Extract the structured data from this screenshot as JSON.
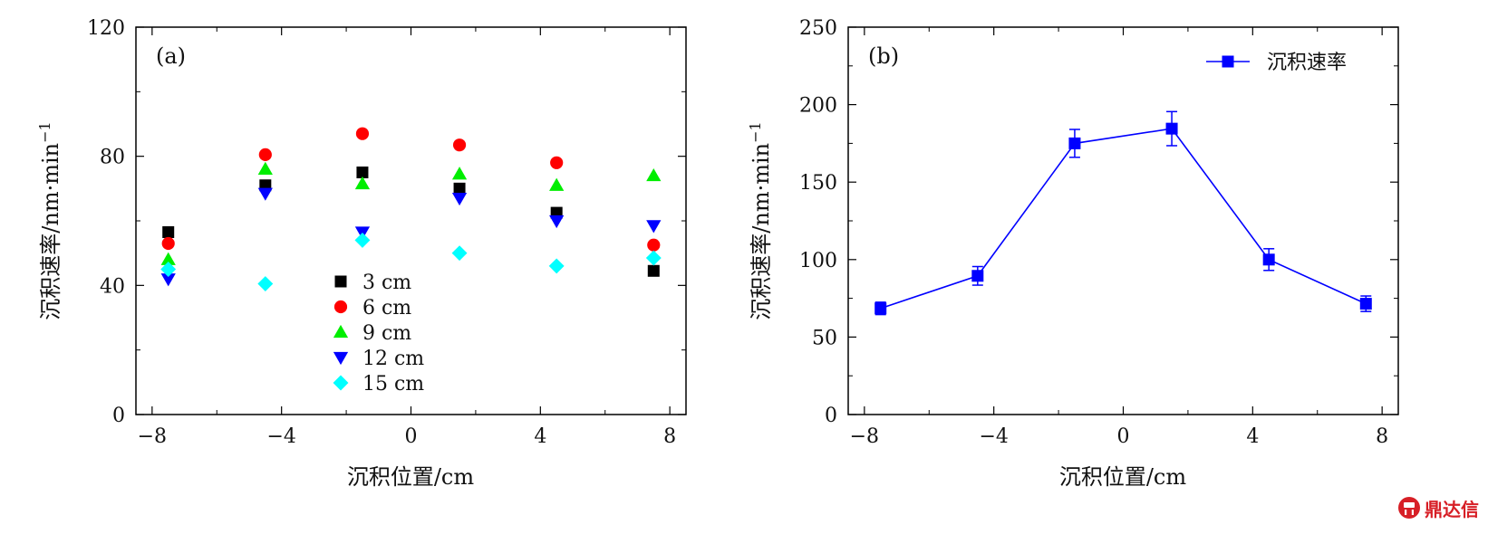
{
  "chart_data": [
    {
      "type": "scatter",
      "panel_label": "(a)",
      "xlabel": "沉积位置/cm",
      "ylabel": "沉积速率/nm·min",
      "ylabel_superscript": "−1",
      "xlim": [
        -8.5,
        8.5
      ],
      "ylim": [
        0,
        120
      ],
      "xticks": [
        -8,
        -4,
        0,
        4,
        8
      ],
      "xtick_labels": [
        "−8",
        "−4",
        "0",
        "4",
        "8"
      ],
      "yticks": [
        0,
        40,
        80,
        120
      ],
      "ytick_labels": [
        "0",
        "40",
        "80",
        "120"
      ],
      "legend_position": "center-bottom",
      "x": [
        -7.5,
        -4.5,
        -1.5,
        1.5,
        4.5,
        7.5
      ],
      "series": [
        {
          "name": "3 cm",
          "marker": "square",
          "color": "#000000",
          "values": [
            56.5,
            71,
            75,
            70,
            62.5,
            44.5
          ]
        },
        {
          "name": "6 cm",
          "marker": "circle",
          "color": "#ff0000",
          "values": [
            53,
            80.5,
            87,
            83.5,
            78,
            52.5
          ]
        },
        {
          "name": "9 cm",
          "marker": "triangle-up",
          "color": "#00ee00",
          "values": [
            48,
            76,
            71.5,
            74.5,
            71,
            74
          ]
        },
        {
          "name": "12 cm",
          "marker": "triangle-down",
          "color": "#0000ff",
          "values": [
            42,
            68.5,
            56.5,
            67,
            60,
            58.5
          ]
        },
        {
          "name": "15 cm",
          "marker": "diamond",
          "color": "#00ffff",
          "values": [
            45,
            40.5,
            54,
            50,
            46,
            48.5
          ]
        }
      ]
    },
    {
      "type": "line",
      "panel_label": "(b)",
      "xlabel": "沉积位置/cm",
      "ylabel": "沉积速率/nm·min",
      "ylabel_superscript": "−1",
      "xlim": [
        -8.5,
        8.5
      ],
      "ylim": [
        0,
        250
      ],
      "xticks": [
        -8,
        -4,
        0,
        4,
        8
      ],
      "xtick_labels": [
        "−8",
        "−4",
        "0",
        "4",
        "8"
      ],
      "yticks": [
        0,
        50,
        100,
        150,
        200,
        250
      ],
      "ytick_labels": [
        "0",
        "50",
        "100",
        "150",
        "200",
        "250"
      ],
      "legend_position": "top-right",
      "x": [
        -7.5,
        -4.5,
        -1.5,
        1.5,
        4.5,
        7.5
      ],
      "series": [
        {
          "name": "沉积速率",
          "marker": "square",
          "color": "#0000ff",
          "values": [
            68.5,
            89.5,
            175,
            184.5,
            100,
            71.5
          ],
          "errors": [
            4,
            6,
            9,
            11,
            7,
            5
          ]
        }
      ]
    }
  ],
  "watermark": {
    "text": "鼎达信",
    "icon": "dingdaxin-logo-icon",
    "color": "#d71f26"
  }
}
